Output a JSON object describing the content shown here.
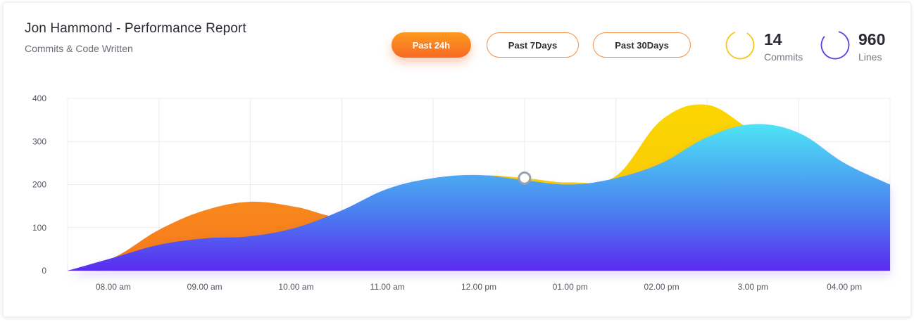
{
  "header": {
    "title": "Jon Hammond - Performance Report",
    "subtitle": "Commits & Code Written"
  },
  "filters": {
    "items": [
      {
        "label": "Past 24h",
        "active": true
      },
      {
        "label": "Past 7Days",
        "active": false
      },
      {
        "label": "Past 30Days",
        "active": false
      }
    ]
  },
  "stats": {
    "commits": {
      "value": "14",
      "label": "Commits",
      "color": "#f8c51c"
    },
    "lines": {
      "value": "960",
      "label": "Lines",
      "color": "#5b3fe4"
    }
  },
  "chart_data": {
    "type": "area",
    "categories": [
      "08.00 am",
      "09.00 am",
      "10.00 am",
      "11.00 am",
      "12.00 pm",
      "01.00 pm",
      "02.00 pm",
      "3.00 pm",
      "04.00 pm"
    ],
    "ylim": [
      0,
      400
    ],
    "yticks": [
      0,
      100,
      200,
      300,
      400
    ],
    "grid": true,
    "x_domain": [
      7.5,
      16.5
    ],
    "series": [
      {
        "key": "commits",
        "color_top": "#fbd600",
        "color_bottom": "#f8c10d",
        "x": [
          7.5,
          8.0,
          8.5,
          9.0,
          9.5,
          10.0,
          10.5,
          11.0,
          11.5,
          12.0,
          12.5,
          13.0,
          13.5,
          14.0,
          14.5,
          15.0,
          15.5,
          16.0,
          16.5
        ],
        "values": [
          0,
          30,
          95,
          140,
          160,
          148,
          125,
          155,
          195,
          220,
          215,
          205,
          220,
          350,
          385,
          325,
          285,
          240,
          200
        ]
      },
      {
        "key": "lines",
        "color_top": "#4ee3f5",
        "color_bottom": "#5b2bf0",
        "x": [
          7.5,
          8.0,
          8.5,
          9.0,
          9.5,
          10.0,
          10.5,
          11.0,
          11.5,
          12.0,
          12.5,
          13.0,
          13.5,
          14.0,
          14.5,
          15.0,
          15.5,
          16.0,
          16.5
        ],
        "values": [
          0,
          30,
          60,
          75,
          80,
          100,
          140,
          190,
          215,
          222,
          210,
          200,
          215,
          250,
          310,
          340,
          320,
          250,
          200
        ]
      }
    ],
    "marker": {
      "x": 12.5,
      "value": 215
    }
  }
}
